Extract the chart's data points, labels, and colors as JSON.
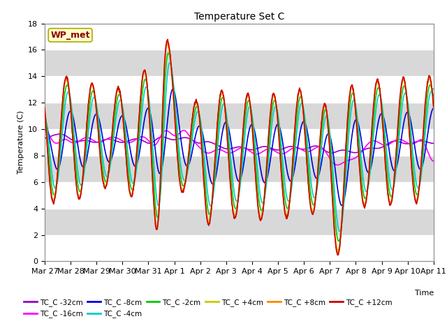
{
  "title": "Temperature Set C",
  "xlabel": "Time",
  "ylabel": "Temperature (C)",
  "ylim": [
    0,
    18
  ],
  "wp_met_label": "WP_met",
  "background_color": "#ffffff",
  "plot_bg_color": "#d8d8d8",
  "grid_color": "#ffffff",
  "series": [
    {
      "label": "TC_C -32cm",
      "color": "#9900cc",
      "depth": -32,
      "lw": 1.2
    },
    {
      "label": "TC_C -16cm",
      "color": "#ff00ff",
      "depth": -16,
      "lw": 1.2
    },
    {
      "label": "TC_C -8cm",
      "color": "#0000dd",
      "depth": -8,
      "lw": 1.2
    },
    {
      "label": "TC_C -4cm",
      "color": "#00cccc",
      "depth": -4,
      "lw": 1.2
    },
    {
      "label": "TC_C -2cm",
      "color": "#00cc00",
      "depth": -2,
      "lw": 1.2
    },
    {
      "label": "TC_C +4cm",
      "color": "#cccc00",
      "depth": 4,
      "lw": 1.2
    },
    {
      "label": "TC_C +8cm",
      "color": "#ff8800",
      "depth": 8,
      "lw": 1.2
    },
    {
      "label": "TC_C +12cm",
      "color": "#cc0000",
      "depth": 12,
      "lw": 1.2
    }
  ],
  "tick_labels": [
    "Mar 27",
    "Mar 28",
    "Mar 29",
    "Mar 30",
    "Mar 31",
    "Apr 1",
    "Apr 2",
    "Apr 3",
    "Apr 4",
    "Apr 5",
    "Apr 6",
    "Apr 7",
    "Apr 8",
    "Apr 9",
    "Apr 10",
    "Apr 11"
  ],
  "num_points": 1440,
  "num_days": 15
}
